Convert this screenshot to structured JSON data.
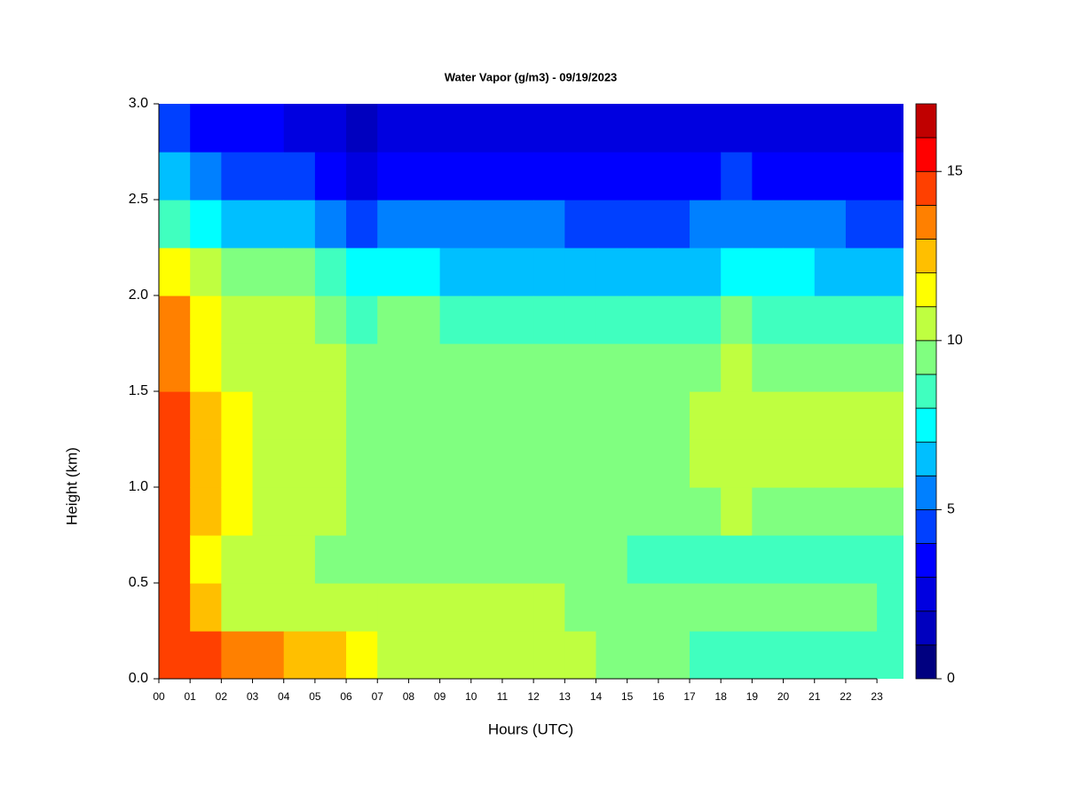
{
  "chart_data": {
    "type": "contour",
    "title": "Water Vapor (g/m3) - 09/19/2023",
    "x_label": "Hours (UTC)",
    "y_label": "Height (km)",
    "x": [
      0,
      1,
      2,
      3,
      4,
      5,
      6,
      7,
      8,
      9,
      10,
      11,
      12,
      13,
      14,
      15,
      16,
      17,
      18,
      19,
      20,
      21,
      22,
      23
    ],
    "y": [
      0,
      0.25,
      0.5,
      0.75,
      1,
      1.25,
      1.5,
      1.75,
      2,
      2.25,
      2.5,
      2.75
    ],
    "values": [
      [
        14.5,
        14,
        14,
        14.5,
        14.5,
        14,
        13.5,
        13,
        11,
        8,
        6,
        4
      ],
      [
        14,
        12.5,
        11,
        12,
        12,
        12,
        11.5,
        11,
        10,
        7,
        5,
        3.5
      ],
      [
        13.5,
        10.5,
        10.5,
        11,
        11,
        11,
        10.5,
        10,
        9.5,
        6.5,
        4.5,
        3
      ],
      [
        13,
        10.5,
        10.5,
        10.5,
        10.5,
        10.5,
        10.5,
        10,
        9,
        6.5,
        4.5,
        3
      ],
      [
        12.5,
        10.5,
        10.5,
        10.5,
        10.5,
        10.5,
        10.5,
        10,
        9,
        6,
        4,
        2.5
      ],
      [
        12,
        10,
        9.5,
        10.5,
        10.5,
        10.5,
        10,
        9.5,
        8.5,
        5.5,
        3.5,
        2
      ],
      [
        11.5,
        10,
        9.5,
        9.5,
        9.5,
        9.5,
        9,
        8.5,
        7.5,
        4.5,
        2.5,
        1.5
      ],
      [
        10.5,
        10,
        9,
        9.5,
        9.5,
        9.5,
        9.5,
        9,
        7.5,
        5,
        3,
        2
      ],
      [
        10.5,
        10,
        9.5,
        9.5,
        9.5,
        9.5,
        9.5,
        9,
        7,
        5,
        3.5,
        2.5
      ],
      [
        10.5,
        10,
        9.5,
        9.5,
        9.5,
        9.5,
        9.5,
        8.5,
        6.5,
        5,
        3.5,
        2.5
      ],
      [
        10.5,
        10,
        9.5,
        9.5,
        9.5,
        9.5,
        9.5,
        8.5,
        6.5,
        5,
        3.5,
        2.5
      ],
      [
        10.5,
        10,
        9.5,
        9.5,
        9.5,
        9.5,
        9.5,
        8.5,
        6.5,
        5,
        3.5,
        2.5
      ],
      [
        10.5,
        10,
        9.5,
        9.5,
        9.5,
        9.5,
        9.5,
        8.5,
        6.5,
        5,
        3.5,
        2.5
      ],
      [
        10,
        9.5,
        9.5,
        9.5,
        9.5,
        9.5,
        9.5,
        8.5,
        6.5,
        4.5,
        3.5,
        2.5
      ],
      [
        9.5,
        9.5,
        9,
        9.5,
        9.5,
        9.5,
        9.5,
        8.5,
        6.5,
        4.5,
        3,
        2.5
      ],
      [
        9.5,
        9.5,
        8.5,
        9.5,
        9.5,
        9.5,
        9.5,
        8.5,
        6,
        4.5,
        3,
        2.5
      ],
      [
        9.5,
        9.5,
        8.5,
        9.5,
        9.5,
        9.5,
        9.5,
        8.5,
        6,
        4,
        3,
        2.5
      ],
      [
        8.5,
        9,
        8.5,
        9.5,
        10.5,
        10.5,
        9.5,
        8.5,
        6.5,
        5,
        3.5,
        2.5
      ],
      [
        8.5,
        9,
        8.5,
        10,
        10.5,
        10.5,
        10,
        9,
        7,
        5.5,
        4,
        2.5
      ],
      [
        8.5,
        9,
        8.5,
        9.5,
        10.5,
        10.5,
        9.5,
        8.5,
        7,
        5.5,
        3.5,
        2.5
      ],
      [
        8.5,
        9,
        8.5,
        9.5,
        10.5,
        10.5,
        9.5,
        8.5,
        7,
        5.5,
        3.5,
        2.5
      ],
      [
        8.5,
        9,
        8.5,
        9.5,
        10.5,
        10.5,
        9.5,
        8.5,
        6.5,
        5,
        3.5,
        2.5
      ],
      [
        8.5,
        9,
        8.5,
        9.5,
        10.5,
        10.5,
        9.5,
        8.5,
        6.5,
        4.5,
        3,
        2.5
      ],
      [
        8.5,
        8.5,
        8.5,
        9,
        10.5,
        10.5,
        9,
        8,
        6,
        4.5,
        3,
        2
      ]
    ],
    "xlim": [
      0,
      23.85
    ],
    "ylim": [
      0,
      3
    ],
    "xticks": [
      {
        "value": 0,
        "label": "00"
      },
      {
        "value": 1,
        "label": "01"
      },
      {
        "value": 2,
        "label": "02"
      },
      {
        "value": 3,
        "label": "03"
      },
      {
        "value": 4,
        "label": "04"
      },
      {
        "value": 5,
        "label": "05"
      },
      {
        "value": 6,
        "label": "06"
      },
      {
        "value": 7,
        "label": "07"
      },
      {
        "value": 8,
        "label": "08"
      },
      {
        "value": 9,
        "label": "09"
      },
      10,
      11,
      12,
      13,
      14,
      15,
      16,
      17,
      18,
      19,
      20,
      21,
      22,
      23
    ],
    "yticks": [
      {
        "value": 0,
        "label": "0.0"
      },
      {
        "value": 0.5,
        "label": "0.5"
      },
      {
        "value": 1,
        "label": "1.0"
      },
      {
        "value": 1.5,
        "label": "1.5"
      },
      {
        "value": 2,
        "label": "2.0"
      },
      {
        "value": 2.5,
        "label": "2.5"
      },
      {
        "value": 3,
        "label": "3.0"
      }
    ],
    "colorbar": {
      "levels": [
        0,
        1,
        2,
        3,
        4,
        5,
        6,
        7,
        8,
        9,
        10,
        11,
        12,
        13,
        14,
        15,
        16,
        17
      ],
      "colors": [
        "#000080",
        "#0000BF",
        "#0000E0",
        "#0000FF",
        "#0040FF",
        "#0080FF",
        "#00BFFF",
        "#00FFFF",
        "#40FFBF",
        "#80FF80",
        "#BFFF40",
        "#FFFF00",
        "#FFBF00",
        "#FF8000",
        "#FF4000",
        "#FF0000",
        "#C00000"
      ],
      "ticks": [
        0,
        5,
        10,
        15
      ]
    }
  }
}
